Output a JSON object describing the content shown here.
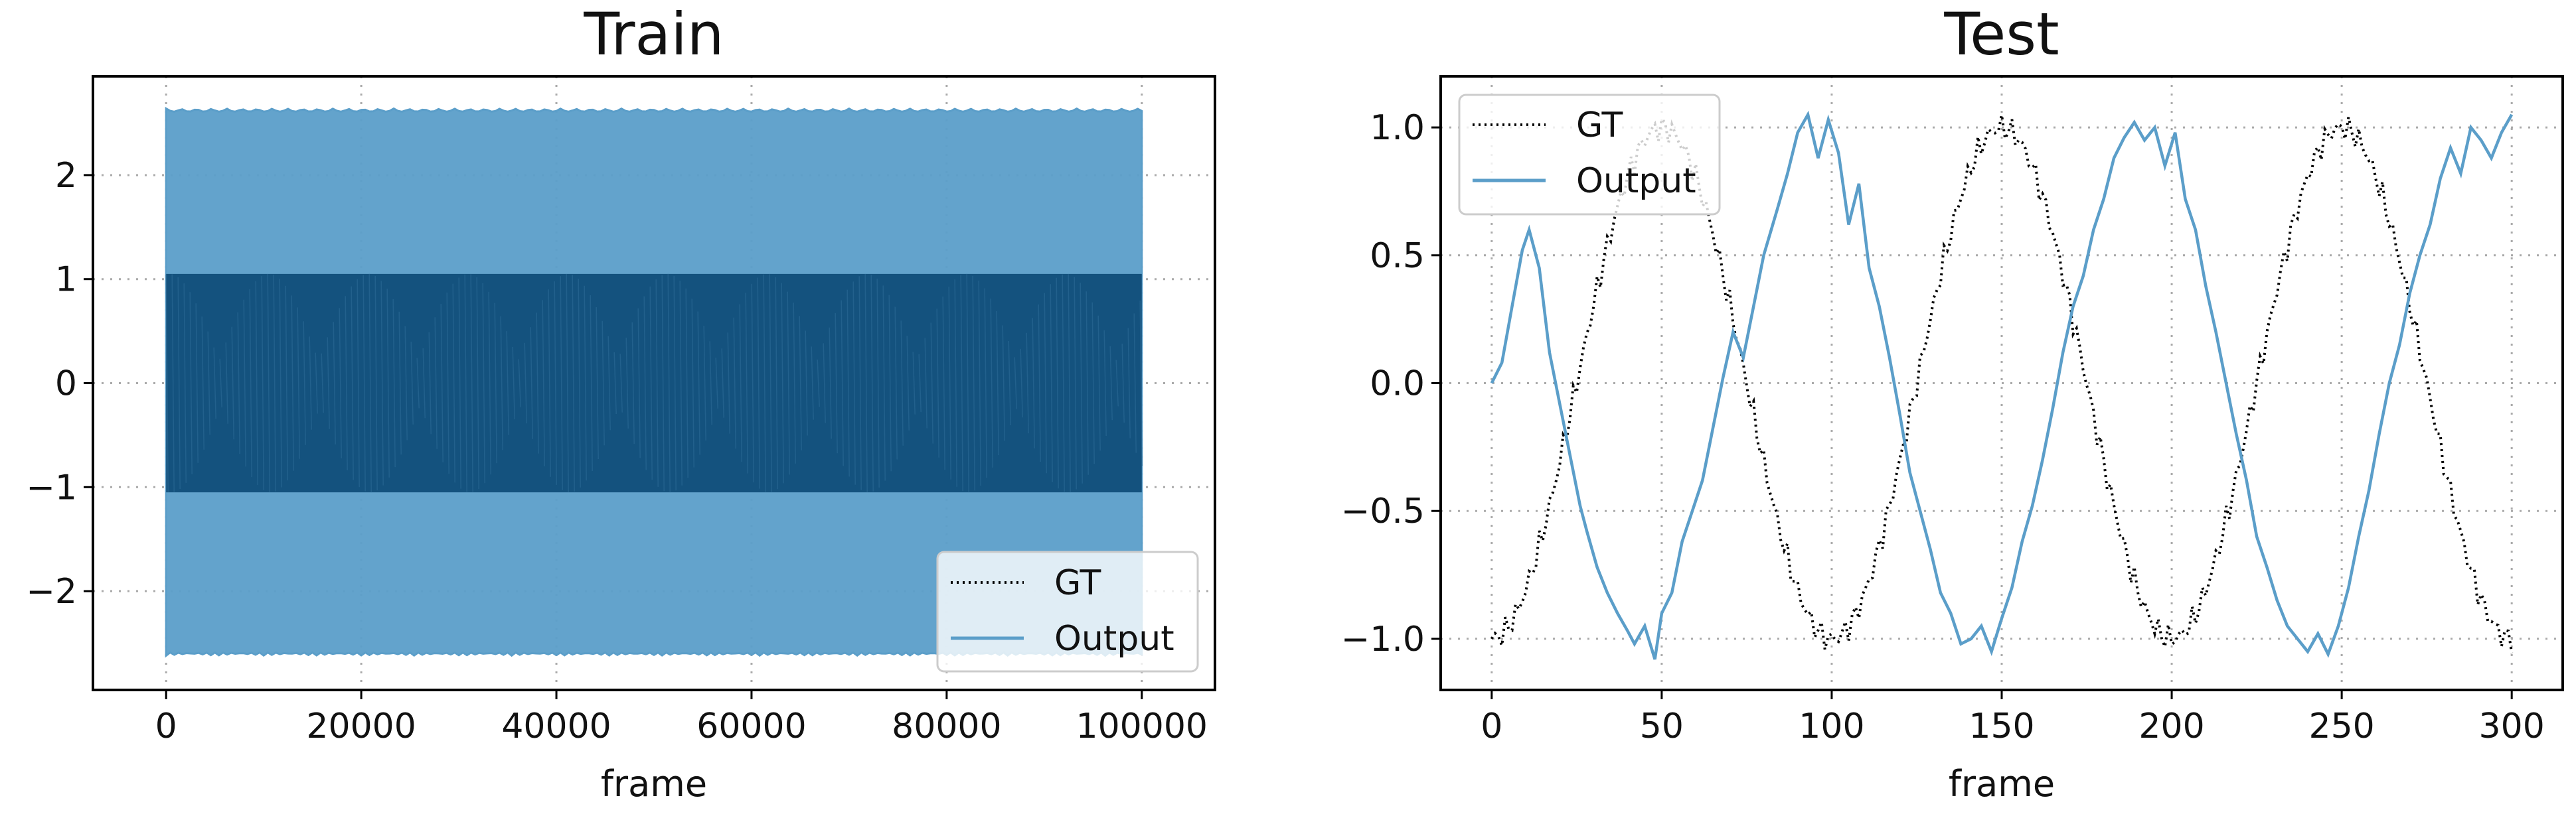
{
  "chart_data": [
    {
      "type": "line",
      "title": "Train",
      "xlabel": "frame",
      "ylabel": "",
      "xlim": [
        -7500,
        107500
      ],
      "ylim": [
        -2.95,
        2.95
      ],
      "xticks": [
        0,
        20000,
        40000,
        60000,
        80000,
        100000
      ],
      "yticks": [
        -2,
        -1,
        0,
        1,
        2
      ],
      "ytick_labels": [
        "−2",
        "−1",
        "0",
        "1",
        "2"
      ],
      "grid": true,
      "legend": {
        "placement": "lower-right"
      },
      "series": [
        {
          "name": "GT",
          "style": "dotted",
          "color": "#000000",
          "x_range": [
            0,
            100000
          ],
          "amplitude": 1.05
        },
        {
          "name": "Output",
          "style": "solid",
          "color": "#5b9ec9",
          "x_range": [
            0,
            100000
          ],
          "envelope": [
            -2.62,
            2.64
          ]
        }
      ]
    },
    {
      "type": "line",
      "title": "Test",
      "xlabel": "frame",
      "ylabel": "",
      "xlim": [
        -15,
        315
      ],
      "ylim": [
        -1.2,
        1.2
      ],
      "xticks": [
        0,
        50,
        100,
        150,
        200,
        250,
        300
      ],
      "yticks": [
        -1.0,
        -0.5,
        0.0,
        0.5,
        1.0
      ],
      "ytick_labels": [
        "−1.0",
        "−0.5",
        "0.0",
        "0.5",
        "1.0"
      ],
      "grid": true,
      "legend": {
        "placement": "upper-left"
      },
      "series": [
        {
          "name": "GT",
          "style": "dotted",
          "color": "#000000",
          "period_frames": 100,
          "amplitude": 1.0,
          "phase_frames": -25
        },
        {
          "name": "Output",
          "style": "solid",
          "color": "#5b9ec9",
          "x": [
            0,
            3,
            6,
            9,
            11,
            14,
            17,
            20,
            23,
            26,
            28,
            31,
            34,
            37,
            40,
            42,
            45,
            48,
            50,
            53,
            56,
            59,
            62,
            65,
            68,
            71,
            74,
            77,
            80,
            84,
            87,
            90,
            93,
            96,
            99,
            102,
            105,
            108,
            111,
            114,
            117,
            120,
            123,
            126,
            129,
            132,
            135,
            138,
            141,
            144,
            147,
            150,
            153,
            156,
            159,
            162,
            165,
            168,
            171,
            174,
            177,
            180,
            183,
            186,
            189,
            192,
            195,
            198,
            201,
            204,
            207,
            210,
            213,
            216,
            219,
            222,
            225,
            228,
            231,
            234,
            237,
            240,
            243,
            246,
            249,
            252,
            255,
            258,
            261,
            264,
            267,
            270,
            273,
            276,
            279,
            282,
            285,
            288,
            291,
            294,
            297,
            300
          ],
          "y": [
            0.0,
            0.08,
            0.3,
            0.52,
            0.6,
            0.45,
            0.12,
            -0.08,
            -0.28,
            -0.48,
            -0.58,
            -0.72,
            -0.82,
            -0.9,
            -0.97,
            -1.02,
            -0.95,
            -1.08,
            -0.9,
            -0.82,
            -0.62,
            -0.5,
            -0.38,
            -0.18,
            0.02,
            0.2,
            0.1,
            0.3,
            0.5,
            0.68,
            0.82,
            0.98,
            1.05,
            0.88,
            1.03,
            0.9,
            0.62,
            0.78,
            0.45,
            0.3,
            0.1,
            -0.12,
            -0.35,
            -0.5,
            -0.65,
            -0.82,
            -0.9,
            -1.02,
            -1.0,
            -0.95,
            -1.05,
            -0.92,
            -0.8,
            -0.62,
            -0.48,
            -0.3,
            -0.1,
            0.12,
            0.3,
            0.42,
            0.6,
            0.72,
            0.88,
            0.96,
            1.02,
            0.95,
            1.0,
            0.85,
            0.98,
            0.72,
            0.6,
            0.38,
            0.2,
            0.0,
            -0.2,
            -0.38,
            -0.6,
            -0.72,
            -0.85,
            -0.95,
            -1.0,
            -1.05,
            -0.98,
            -1.06,
            -0.95,
            -0.8,
            -0.6,
            -0.42,
            -0.2,
            0.0,
            0.15,
            0.35,
            0.5,
            0.62,
            0.8,
            0.92,
            0.82,
            1.0,
            0.95,
            0.88,
            0.98,
            1.05
          ]
        }
      ]
    }
  ]
}
